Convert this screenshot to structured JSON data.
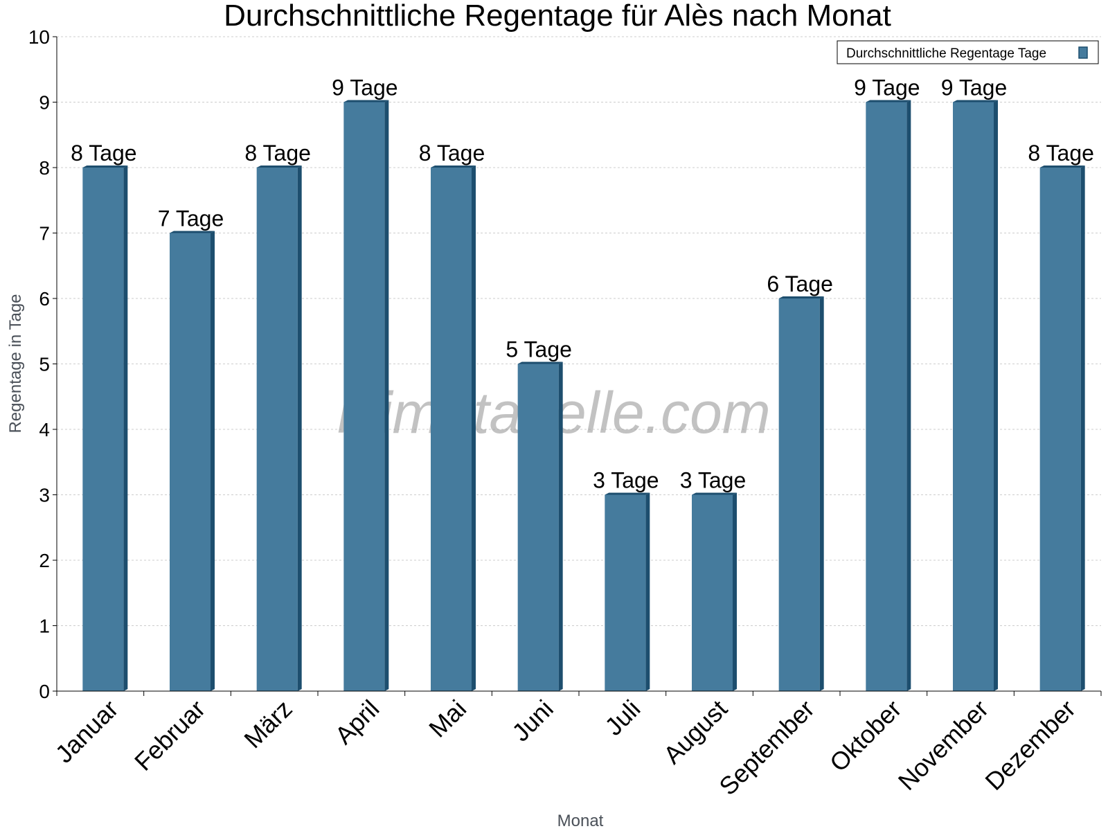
{
  "watermark": "klimatabelle.com",
  "legend": {
    "position": "top-right",
    "swatch_color": "#457b9d"
  },
  "colors": {
    "bar_front": "#457b9d",
    "bar_side": "#1d4e6e",
    "bar_top": "#1d4e6e",
    "grid": "#cccccc",
    "axis": "#000000"
  },
  "chart_data": {
    "type": "bar",
    "title": "Durchschnittliche Regentage für Alès nach Monat",
    "xlabel": "Monat",
    "ylabel": "Regentage in Tage",
    "categories": [
      "Januar",
      "Februar",
      "März",
      "April",
      "Mai",
      "Juni",
      "Juli",
      "August",
      "September",
      "Oktober",
      "November",
      "Dezember"
    ],
    "series": [
      {
        "name": "Durchschnittliche Regentage Tage",
        "values": [
          8,
          7,
          8,
          9,
          8,
          5,
          3,
          3,
          6,
          9,
          9,
          8
        ],
        "labels": [
          "8 Tage",
          "7 Tage",
          "8 Tage",
          "9 Tage",
          "8 Tage",
          "5 Tage",
          "3 Tage",
          "3 Tage",
          "6 Tage",
          "9 Tage",
          "9 Tage",
          "8 Tage"
        ]
      }
    ],
    "ylim": [
      0,
      10
    ],
    "yticks": [
      0,
      1,
      2,
      3,
      4,
      5,
      6,
      7,
      8,
      9,
      10
    ],
    "grid": true
  }
}
